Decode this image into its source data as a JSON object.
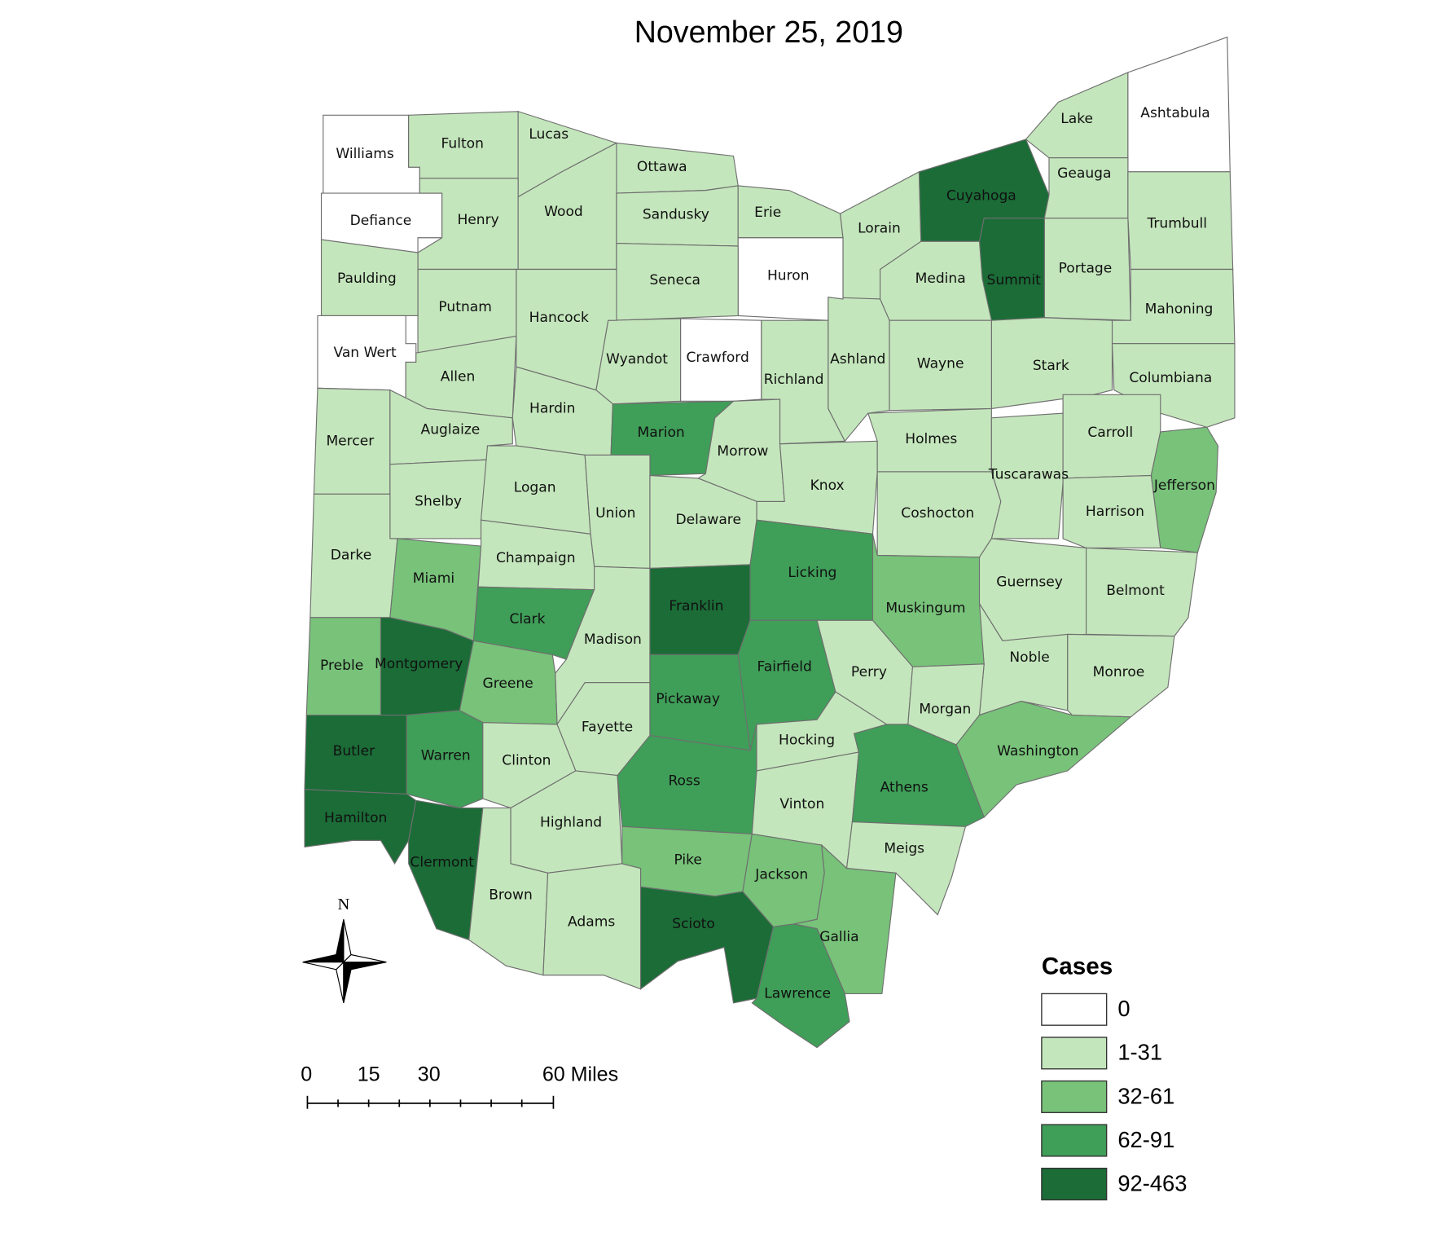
{
  "title": "November 25, 2019",
  "legend": {
    "title": "Cases",
    "items": [
      {
        "label": "0",
        "color": "#ffffff"
      },
      {
        "label": "1-31",
        "color": "#c4e6bc"
      },
      {
        "label": "32-61",
        "color": "#78c27a"
      },
      {
        "label": "62-91",
        "color": "#3f9e58"
      },
      {
        "label": "92-463",
        "color": "#1b6c37"
      }
    ]
  },
  "north_label": "N",
  "scale_bar": {
    "labels": [
      "0",
      "15",
      "30",
      "60 Miles"
    ]
  },
  "counties": [
    {
      "name": "Williams",
      "cases": "0"
    },
    {
      "name": "Fulton",
      "cases": "1-31"
    },
    {
      "name": "Lucas",
      "cases": "1-31"
    },
    {
      "name": "Ottawa",
      "cases": "1-31"
    },
    {
      "name": "Defiance",
      "cases": "0"
    },
    {
      "name": "Henry",
      "cases": "1-31"
    },
    {
      "name": "Wood",
      "cases": "1-31"
    },
    {
      "name": "Sandusky",
      "cases": "1-31"
    },
    {
      "name": "Erie",
      "cases": "1-31"
    },
    {
      "name": "Lorain",
      "cases": "1-31"
    },
    {
      "name": "Cuyahoga",
      "cases": "92-463"
    },
    {
      "name": "Lake",
      "cases": "1-31"
    },
    {
      "name": "Ashtabula",
      "cases": "0"
    },
    {
      "name": "Geauga",
      "cases": "1-31"
    },
    {
      "name": "Trumbull",
      "cases": "1-31"
    },
    {
      "name": "Portage",
      "cases": "1-31"
    },
    {
      "name": "Summit",
      "cases": "92-463"
    },
    {
      "name": "Medina",
      "cases": "1-31"
    },
    {
      "name": "Mahoning",
      "cases": "1-31"
    },
    {
      "name": "Columbiana",
      "cases": "1-31"
    },
    {
      "name": "Stark",
      "cases": "1-31"
    },
    {
      "name": "Wayne",
      "cases": "1-31"
    },
    {
      "name": "Ashland",
      "cases": "1-31"
    },
    {
      "name": "Huron",
      "cases": "0"
    },
    {
      "name": "Richland",
      "cases": "1-31"
    },
    {
      "name": "Seneca",
      "cases": "1-31"
    },
    {
      "name": "Crawford",
      "cases": "0"
    },
    {
      "name": "Wyandot",
      "cases": "1-31"
    },
    {
      "name": "Hancock",
      "cases": "1-31"
    },
    {
      "name": "Putnam",
      "cases": "1-31"
    },
    {
      "name": "Paulding",
      "cases": "1-31"
    },
    {
      "name": "Van Wert",
      "cases": "0"
    },
    {
      "name": "Allen",
      "cases": "1-31"
    },
    {
      "name": "Mercer",
      "cases": "1-31"
    },
    {
      "name": "Auglaize",
      "cases": "1-31"
    },
    {
      "name": "Hardin",
      "cases": "1-31"
    },
    {
      "name": "Marion",
      "cases": "62-91"
    },
    {
      "name": "Morrow",
      "cases": "1-31"
    },
    {
      "name": "Knox",
      "cases": "1-31"
    },
    {
      "name": "Holmes",
      "cases": "1-31"
    },
    {
      "name": "Tuscarawas",
      "cases": "1-31"
    },
    {
      "name": "Carroll",
      "cases": "1-31"
    },
    {
      "name": "Jefferson",
      "cases": "32-61"
    },
    {
      "name": "Harrison",
      "cases": "1-31"
    },
    {
      "name": "Coshocton",
      "cases": "1-31"
    },
    {
      "name": "Shelby",
      "cases": "1-31"
    },
    {
      "name": "Logan",
      "cases": "1-31"
    },
    {
      "name": "Union",
      "cases": "1-31"
    },
    {
      "name": "Delaware",
      "cases": "1-31"
    },
    {
      "name": "Darke",
      "cases": "1-31"
    },
    {
      "name": "Miami",
      "cases": "32-61"
    },
    {
      "name": "Champaign",
      "cases": "1-31"
    },
    {
      "name": "Clark",
      "cases": "62-91"
    },
    {
      "name": "Madison",
      "cases": "1-31"
    },
    {
      "name": "Franklin",
      "cases": "92-463"
    },
    {
      "name": "Licking",
      "cases": "62-91"
    },
    {
      "name": "Muskingum",
      "cases": "32-61"
    },
    {
      "name": "Guernsey",
      "cases": "1-31"
    },
    {
      "name": "Belmont",
      "cases": "1-31"
    },
    {
      "name": "Noble",
      "cases": "1-31"
    },
    {
      "name": "Monroe",
      "cases": "1-31"
    },
    {
      "name": "Preble",
      "cases": "32-61"
    },
    {
      "name": "Montgomery",
      "cases": "92-463"
    },
    {
      "name": "Greene",
      "cases": "32-61"
    },
    {
      "name": "Fayette",
      "cases": "1-31"
    },
    {
      "name": "Pickaway",
      "cases": "62-91"
    },
    {
      "name": "Fairfield",
      "cases": "62-91"
    },
    {
      "name": "Perry",
      "cases": "1-31"
    },
    {
      "name": "Morgan",
      "cases": "1-31"
    },
    {
      "name": "Washington",
      "cases": "32-61"
    },
    {
      "name": "Butler",
      "cases": "92-463"
    },
    {
      "name": "Warren",
      "cases": "62-91"
    },
    {
      "name": "Clinton",
      "cases": "1-31"
    },
    {
      "name": "Highland",
      "cases": "1-31"
    },
    {
      "name": "Ross",
      "cases": "62-91"
    },
    {
      "name": "Hocking",
      "cases": "1-31"
    },
    {
      "name": "Vinton",
      "cases": "1-31"
    },
    {
      "name": "Athens",
      "cases": "62-91"
    },
    {
      "name": "Meigs",
      "cases": "1-31"
    },
    {
      "name": "Hamilton",
      "cases": "92-463"
    },
    {
      "name": "Clermont",
      "cases": "92-463"
    },
    {
      "name": "Brown",
      "cases": "1-31"
    },
    {
      "name": "Adams",
      "cases": "1-31"
    },
    {
      "name": "Pike",
      "cases": "32-61"
    },
    {
      "name": "Scioto",
      "cases": "92-463"
    },
    {
      "name": "Jackson",
      "cases": "32-61"
    },
    {
      "name": "Gallia",
      "cases": "32-61"
    },
    {
      "name": "Lawrence",
      "cases": "62-91"
    }
  ]
}
